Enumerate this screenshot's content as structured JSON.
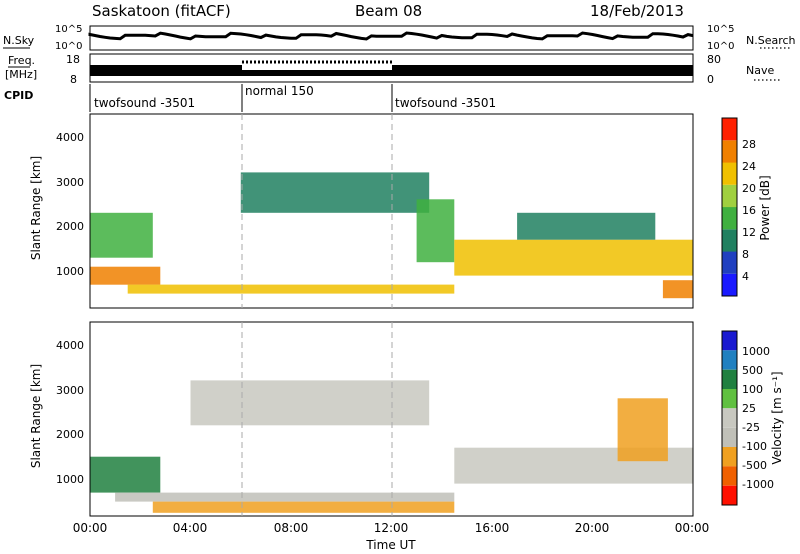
{
  "header": {
    "station": "Saskatoon (fitACF)",
    "beam": "Beam 08",
    "date": "18/Feb/2013"
  },
  "strip_labels": {
    "nsky": "N.Sky",
    "nsearch": "N.Search",
    "freq_top": "Freq.",
    "freq_unit": "[MHz]",
    "nave": "Nave",
    "cpid": "CPID",
    "nsky_ticks": [
      "10^5",
      "10^0"
    ],
    "freq_ticks": [
      "18",
      "8"
    ],
    "nave_ticks": [
      "80",
      "0"
    ]
  },
  "cpid_segments": [
    {
      "label": "twofsound -3501",
      "start_h": 0,
      "end_h": 6
    },
    {
      "label": "normal 150",
      "start_h": 6,
      "end_h": 12
    },
    {
      "label": "twofsound -3501",
      "start_h": 12,
      "end_h": 24
    }
  ],
  "x_axis": {
    "title": "Time UT",
    "ticks": [
      "00:00",
      "04:00",
      "08:00",
      "12:00",
      "16:00",
      "20:00",
      "00:00"
    ]
  },
  "power_panel": {
    "ylabel": "Slant Range [km]",
    "yticks": [
      "1000",
      "2000",
      "3000",
      "4000"
    ],
    "colorbar_title": "Power [dB]",
    "colorbar_ticks": [
      "4",
      "8",
      "12",
      "16",
      "20",
      "24",
      "28"
    ],
    "colorbar_colors": [
      "#1a1aff",
      "#2040c0",
      "#208060",
      "#40b040",
      "#a0d040",
      "#f0c000",
      "#f08000",
      "#ff2000"
    ]
  },
  "velocity_panel": {
    "ylabel": "Slant Range [km]",
    "yticks": [
      "1000",
      "2000",
      "3000",
      "4000"
    ],
    "colorbar_title": "Velocity [m s⁻¹]",
    "colorbar_ticks": [
      "1000",
      "500",
      "100",
      "25",
      "-25",
      "-100",
      "-500",
      "-1000"
    ],
    "colorbar_colors": [
      "#1a1ad0",
      "#2080c0",
      "#208040",
      "#60c040",
      "#c8c8c0",
      "#c0c0b8",
      "#f0a020",
      "#f06000",
      "#ff1000"
    ]
  },
  "chart_data": {
    "type": "heatmap",
    "title": "Saskatoon (fitACF)  Beam 08  18/Feb/2013",
    "xlabel": "Time UT",
    "ylabel": "Slant Range [km]",
    "xlim": [
      0,
      24
    ],
    "ylim": [
      180,
      4500
    ],
    "panels": [
      {
        "name": "Power [dB]",
        "zlim": [
          0,
          30
        ],
        "regions": [
          {
            "start_h": 0.0,
            "end_h": 2.8,
            "range_low_km": 700,
            "range_high_km": 1100,
            "value": 26
          },
          {
            "start_h": 0.0,
            "end_h": 2.5,
            "range_low_km": 1300,
            "range_high_km": 2300,
            "value": 14
          },
          {
            "start_h": 1.5,
            "end_h": 14.5,
            "range_low_km": 500,
            "range_high_km": 700,
            "value": 20
          },
          {
            "start_h": 6.0,
            "end_h": 13.5,
            "range_low_km": 2300,
            "range_high_km": 3200,
            "value": 8
          },
          {
            "start_h": 13.0,
            "end_h": 14.5,
            "range_low_km": 1200,
            "range_high_km": 2600,
            "value": 12
          },
          {
            "start_h": 14.5,
            "end_h": 24.0,
            "range_low_km": 900,
            "range_high_km": 1700,
            "value": 20
          },
          {
            "start_h": 17.0,
            "end_h": 22.5,
            "range_low_km": 1700,
            "range_high_km": 2300,
            "value": 10
          },
          {
            "start_h": 22.8,
            "end_h": 24.0,
            "range_low_km": 400,
            "range_high_km": 800,
            "value": 26
          }
        ]
      },
      {
        "name": "Velocity [m s-1]",
        "zlim": [
          -1000,
          1000
        ],
        "regions": [
          {
            "start_h": 0.0,
            "end_h": 2.8,
            "range_low_km": 700,
            "range_high_km": 1500,
            "value": 100
          },
          {
            "start_h": 1.0,
            "end_h": 14.5,
            "range_low_km": 500,
            "range_high_km": 700,
            "value": -25
          },
          {
            "start_h": 2.5,
            "end_h": 14.5,
            "range_low_km": 250,
            "range_high_km": 500,
            "value": -100
          },
          {
            "start_h": 4.0,
            "end_h": 13.5,
            "range_low_km": 2200,
            "range_high_km": 3200,
            "value": 0
          },
          {
            "start_h": 14.5,
            "end_h": 24.0,
            "range_low_km": 900,
            "range_high_km": 1700,
            "value": 0
          },
          {
            "start_h": 21.0,
            "end_h": 23.0,
            "range_low_km": 1400,
            "range_high_km": 2800,
            "value": -100
          }
        ]
      }
    ],
    "markers_h": [
      6,
      12
    ]
  }
}
